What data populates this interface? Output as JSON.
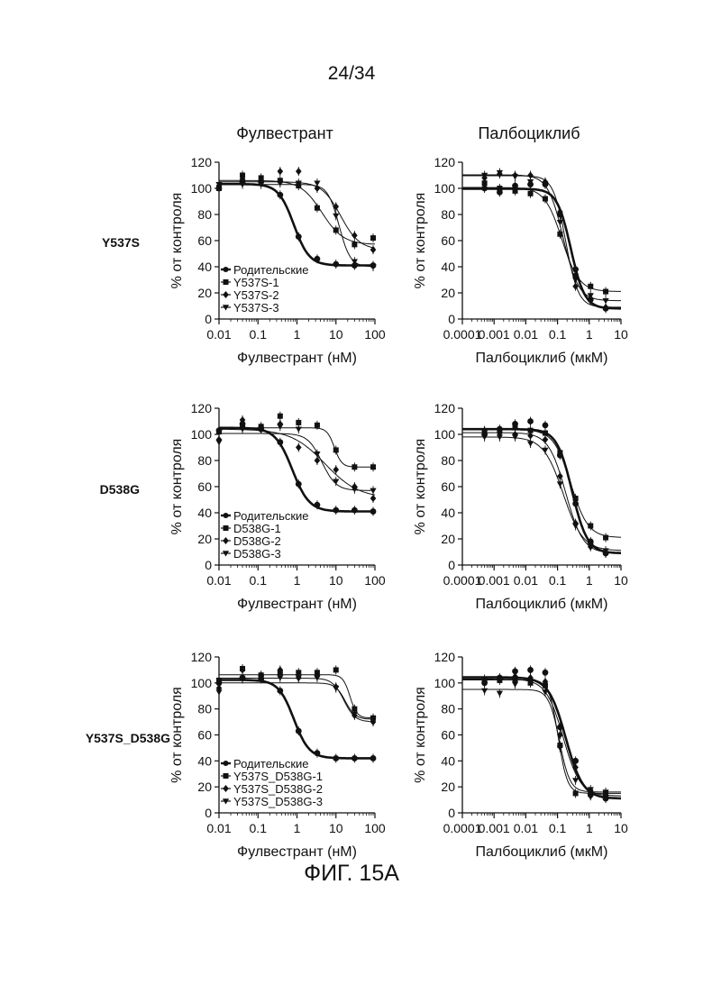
{
  "page_number": "24/34",
  "figure_caption": "ФИГ. 15А",
  "column_titles": [
    "Фулвестрант",
    "Палбоциклиб"
  ],
  "row_labels": [
    "Y537S",
    "D538G",
    "Y537S_D538G"
  ],
  "chart_data": [
    {
      "type": "scatter",
      "xscale": "log",
      "xlabel": "Фулвестрант (нМ)",
      "ylabel": "% от контроля",
      "xlim": [
        0.01,
        100
      ],
      "ylim": [
        0,
        120
      ],
      "xticks": [
        "0.01",
        "0.1",
        "1",
        "10",
        "100"
      ],
      "yticks": [
        "0",
        "20",
        "40",
        "60",
        "80",
        "100",
        "120"
      ],
      "legend_position": "bottom-left",
      "series": [
        {
          "name": "Родительские",
          "marker": "circle",
          "x": [
            0.01,
            0.04,
            0.12,
            0.37,
            1.1,
            3.3,
            10,
            30,
            90
          ],
          "y": [
            100,
            105,
            105,
            95,
            63,
            46,
            42,
            41,
            41
          ]
        },
        {
          "name": "Y537S-1",
          "marker": "square",
          "x": [
            0.01,
            0.04,
            0.12,
            0.37,
            1.1,
            3.3,
            10,
            30,
            90
          ],
          "y": [
            100,
            110,
            108,
            106,
            102,
            85,
            68,
            57,
            62
          ]
        },
        {
          "name": "Y537S-2",
          "marker": "diamond",
          "x": [
            0.01,
            0.04,
            0.12,
            0.37,
            1.1,
            3.3,
            10,
            30,
            90
          ],
          "y": [
            102,
            107,
            106,
            113,
            113,
            100,
            86,
            64,
            53
          ]
        },
        {
          "name": "Y537S-3",
          "marker": "triangle-down",
          "x": [
            0.01,
            0.04,
            0.12,
            0.37,
            1.1,
            3.3,
            10,
            30,
            90
          ],
          "y": [
            103,
            103,
            103,
            104,
            104,
            104,
            79,
            44,
            40
          ]
        }
      ]
    },
    {
      "type": "scatter",
      "xscale": "log",
      "xlabel": "Палбоциклиб (мкМ)",
      "ylabel": "% от контроля",
      "xlim": [
        0.0001,
        10
      ],
      "ylim": [
        0,
        120
      ],
      "xticks": [
        "0.0001",
        "0.001",
        "0.01",
        "0.1",
        "1",
        "10"
      ],
      "yticks": [
        "0",
        "20",
        "40",
        "60",
        "80",
        "100",
        "120"
      ],
      "series": [
        {
          "name": "Родительские",
          "marker": "circle",
          "x": [
            0.0005,
            0.0015,
            0.0046,
            0.014,
            0.041,
            0.12,
            0.37,
            1.1,
            3.3
          ],
          "y": [
            100,
            97,
            102,
            103,
            103,
            80,
            38,
            15,
            8
          ]
        },
        {
          "name": "Y537S-1",
          "marker": "square",
          "x": [
            0.0005,
            0.0015,
            0.0046,
            0.014,
            0.041,
            0.12,
            0.37,
            1.1,
            3.3
          ],
          "y": [
            104,
            100,
            98,
            96,
            92,
            65,
            33,
            25,
            21
          ]
        },
        {
          "name": "Y537S-2",
          "marker": "diamond",
          "x": [
            0.0005,
            0.0015,
            0.0046,
            0.014,
            0.041,
            0.12,
            0.37,
            1.1,
            3.3
          ],
          "y": [
            108,
            111,
            110,
            110,
            105,
            82,
            25,
            14,
            9
          ]
        },
        {
          "name": "Y537S-3",
          "marker": "triangle-down",
          "x": [
            0.0005,
            0.0015,
            0.0046,
            0.014,
            0.041,
            0.12,
            0.37,
            1.1,
            3.3
          ],
          "y": [
            110,
            112,
            109,
            105,
            103,
            74,
            30,
            18,
            14
          ]
        }
      ]
    },
    {
      "type": "scatter",
      "xscale": "log",
      "xlabel": "Фулвестрант (нМ)",
      "ylabel": "% от контроля",
      "xlim": [
        0.01,
        100
      ],
      "ylim": [
        0,
        120
      ],
      "xticks": [
        "0.01",
        "0.1",
        "1",
        "10",
        "100"
      ],
      "yticks": [
        "0",
        "20",
        "40",
        "60",
        "80",
        "100",
        "120"
      ],
      "legend_position": "bottom-left",
      "series": [
        {
          "name": "Родительские",
          "marker": "circle",
          "x": [
            0.01,
            0.04,
            0.12,
            0.37,
            1.1,
            3.3,
            10,
            30,
            90
          ],
          "y": [
            103,
            108,
            104,
            94,
            62,
            46,
            42,
            42,
            41
          ]
        },
        {
          "name": "D538G-1",
          "marker": "square",
          "x": [
            0.01,
            0.04,
            0.12,
            0.37,
            1.1,
            3.3,
            10,
            30,
            90
          ],
          "y": [
            102,
            107,
            106,
            114,
            109,
            107,
            88,
            75,
            75
          ]
        },
        {
          "name": "D538G-2",
          "marker": "diamond",
          "x": [
            0.01,
            0.04,
            0.12,
            0.37,
            1.1,
            3.3,
            10,
            30,
            90
          ],
          "y": [
            96,
            111,
            105,
            108,
            90,
            80,
            73,
            60,
            51
          ]
        },
        {
          "name": "D538G-3",
          "marker": "triangle-down",
          "x": [
            0.01,
            0.04,
            0.12,
            0.37,
            1.1,
            3.3,
            10,
            30,
            90
          ],
          "y": [
            94,
            104,
            104,
            106,
            104,
            85,
            64,
            58,
            57
          ]
        }
      ]
    },
    {
      "type": "scatter",
      "xscale": "log",
      "xlabel": "Палбоциклиб (мкМ)",
      "ylabel": "% от контроля",
      "xlim": [
        0.0001,
        10
      ],
      "ylim": [
        0,
        120
      ],
      "xticks": [
        "0.0001",
        "0.001",
        "0.01",
        "0.1",
        "1",
        "10"
      ],
      "yticks": [
        "0",
        "20",
        "40",
        "60",
        "80",
        "100",
        "120"
      ],
      "series": [
        {
          "name": "Родительские",
          "marker": "circle",
          "x": [
            0.0005,
            0.0015,
            0.0046,
            0.014,
            0.041,
            0.12,
            0.37,
            1.1,
            3.3
          ],
          "y": [
            100,
            104,
            108,
            110,
            107,
            84,
            47,
            18,
            9
          ]
        },
        {
          "name": "D538G-1",
          "marker": "square",
          "x": [
            0.0005,
            0.0015,
            0.0046,
            0.014,
            0.041,
            0.12,
            0.37,
            1.1,
            3.3
          ],
          "y": [
            102,
            103,
            106,
            103,
            101,
            86,
            51,
            30,
            21
          ]
        },
        {
          "name": "D538G-2",
          "marker": "diamond",
          "x": [
            0.0005,
            0.0015,
            0.0046,
            0.014,
            0.041,
            0.12,
            0.37,
            1.1,
            3.3
          ],
          "y": [
            103,
            101,
            100,
            99,
            96,
            68,
            32,
            14,
            9
          ]
        },
        {
          "name": "D538G-3",
          "marker": "triangle-down",
          "x": [
            0.0005,
            0.0015,
            0.0046,
            0.014,
            0.041,
            0.12,
            0.37,
            1.1,
            3.3
          ],
          "y": [
            98,
            98,
            98,
            93,
            88,
            62,
            30,
            15,
            11
          ]
        }
      ]
    },
    {
      "type": "scatter",
      "xscale": "log",
      "xlabel": "Фулвестрант (нМ)",
      "ylabel": "% от контроля",
      "xlim": [
        0.01,
        100
      ],
      "ylim": [
        0,
        120
      ],
      "xticks": [
        "0.01",
        "0.1",
        "1",
        "10",
        "100"
      ],
      "yticks": [
        "0",
        "20",
        "40",
        "60",
        "80",
        "100",
        "120"
      ],
      "legend_position": "bottom-left",
      "series": [
        {
          "name": "Родительские",
          "marker": "circle",
          "x": [
            0.01,
            0.04,
            0.12,
            0.37,
            1.1,
            3.3,
            10,
            30,
            90
          ],
          "y": [
            100,
            104,
            103,
            94,
            63,
            46,
            42,
            42,
            42
          ]
        },
        {
          "name": "Y537S_D538G-1",
          "marker": "square",
          "x": [
            0.01,
            0.04,
            0.12,
            0.37,
            1.1,
            3.3,
            10,
            30,
            90
          ],
          "y": [
            102,
            111,
            106,
            108,
            108,
            108,
            110,
            80,
            73
          ]
        },
        {
          "name": "Y537S_D538G-2",
          "marker": "diamond",
          "x": [
            0.01,
            0.04,
            0.12,
            0.37,
            1.1,
            3.3,
            10,
            30,
            90
          ],
          "y": [
            96,
            110,
            105,
            110,
            104,
            105,
            97,
            75,
            70
          ]
        },
        {
          "name": "Y537S_D538G-3",
          "marker": "triangle-down",
          "x": [
            0.01,
            0.04,
            0.12,
            0.37,
            1.1,
            3.3,
            10,
            30,
            90
          ],
          "y": [
            93,
            103,
            104,
            104,
            104,
            104,
            96,
            76,
            72
          ]
        }
      ]
    },
    {
      "type": "scatter",
      "xscale": "log",
      "xlabel": "Палбоциклиб (мкМ)",
      "ylabel": "% от контроля",
      "xlim": [
        0.0001,
        10
      ],
      "ylim": [
        0,
        120
      ],
      "xticks": [
        "0.0001",
        "0.001",
        "0.01",
        "0.1",
        "1",
        "10"
      ],
      "yticks": [
        "0",
        "20",
        "40",
        "60",
        "80",
        "100",
        "120"
      ],
      "series": [
        {
          "name": "Родительские",
          "marker": "circle",
          "x": [
            0.0005,
            0.0015,
            0.0046,
            0.014,
            0.041,
            0.12,
            0.37,
            1.1,
            3.3
          ],
          "y": [
            100,
            104,
            109,
            110,
            108,
            66,
            40,
            14,
            11
          ]
        },
        {
          "name": "Y537S_D538G-1",
          "marker": "square",
          "x": [
            0.0005,
            0.0015,
            0.0046,
            0.014,
            0.041,
            0.12,
            0.37,
            1.1,
            3.3
          ],
          "y": [
            103,
            102,
            102,
            100,
            98,
            52,
            15,
            16,
            15
          ]
        },
        {
          "name": "Y537S_D538G-2",
          "marker": "diamond",
          "x": [
            0.0005,
            0.0015,
            0.0046,
            0.014,
            0.041,
            0.12,
            0.37,
            1.1,
            3.3
          ],
          "y": [
            101,
            103,
            105,
            104,
            101,
            60,
            35,
            13,
            13
          ]
        },
        {
          "name": "Y537S_D538G-3",
          "marker": "triangle-down",
          "x": [
            0.0005,
            0.0015,
            0.0046,
            0.014,
            0.041,
            0.12,
            0.37,
            1.1,
            3.3
          ],
          "y": [
            94,
            92,
            99,
            101,
            93,
            50,
            25,
            18,
            16
          ]
        }
      ]
    }
  ]
}
